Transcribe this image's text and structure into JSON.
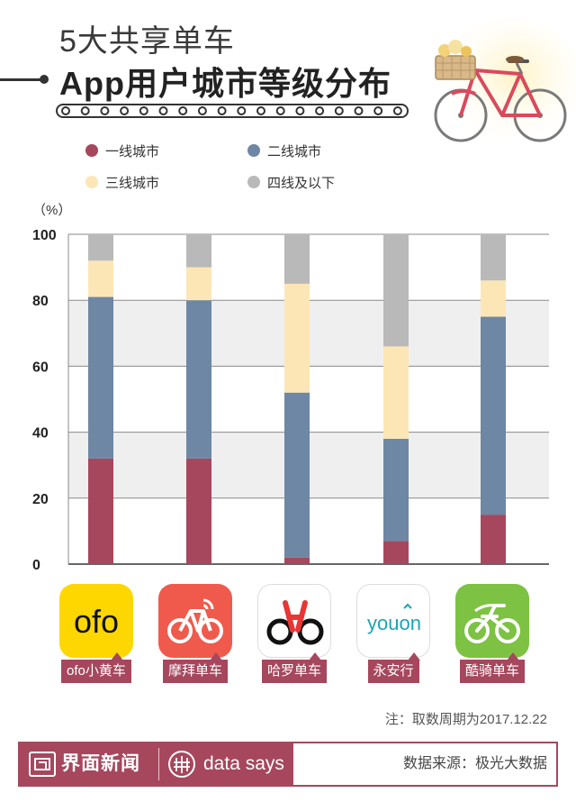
{
  "header": {
    "title_line1": "5大共享单车",
    "title_line2": "App用户城市等级分布"
  },
  "colors": {
    "tier1": "#a6475d",
    "tier2": "#6e87a4",
    "tier3": "#fde6b6",
    "tier4": "#b9b9b9",
    "brand": "#a6475d"
  },
  "legend": [
    {
      "label": "一线城市",
      "color": "#a6475d"
    },
    {
      "label": "二线城市",
      "color": "#6e87a4"
    },
    {
      "label": "三线城市",
      "color": "#fde6b6"
    },
    {
      "label": "四线及以下",
      "color": "#b9b9b9"
    }
  ],
  "chart_data": {
    "type": "bar",
    "stacked": true,
    "unit_label": "（%）",
    "categories": [
      "ofo小黄车",
      "摩拜单车",
      "哈罗单车",
      "永安行",
      "酷骑单车"
    ],
    "series": [
      {
        "name": "一线城市",
        "values": [
          32,
          32,
          2,
          7,
          15
        ]
      },
      {
        "name": "二线城市",
        "values": [
          49,
          48,
          50,
          31,
          60
        ]
      },
      {
        "name": "三线城市",
        "values": [
          11,
          10,
          33,
          28,
          11
        ]
      },
      {
        "name": "四线及以下",
        "values": [
          8,
          10,
          15,
          34,
          14
        ]
      }
    ],
    "ylim": [
      0,
      100
    ],
    "yticks": [
      "0",
      "20",
      "40",
      "60",
      "80",
      "100"
    ],
    "grid": true
  },
  "apps": [
    {
      "label": "ofo小黄车",
      "icon": "ofo-logo-icon",
      "logo_text": "ofo"
    },
    {
      "label": "摩拜单车",
      "icon": "mobike-logo-icon"
    },
    {
      "label": "哈罗单车",
      "icon": "hellobike-logo-icon"
    },
    {
      "label": "永安行",
      "icon": "youon-logo-icon",
      "logo_text": "youon"
    },
    {
      "label": "酷骑单车",
      "icon": "kuqi-logo-icon"
    }
  ],
  "note": "注：取数周期为2017.12.22",
  "footer": {
    "brand": "界面新闻",
    "tagline": "data says",
    "source": "数据来源：极光大数据"
  }
}
